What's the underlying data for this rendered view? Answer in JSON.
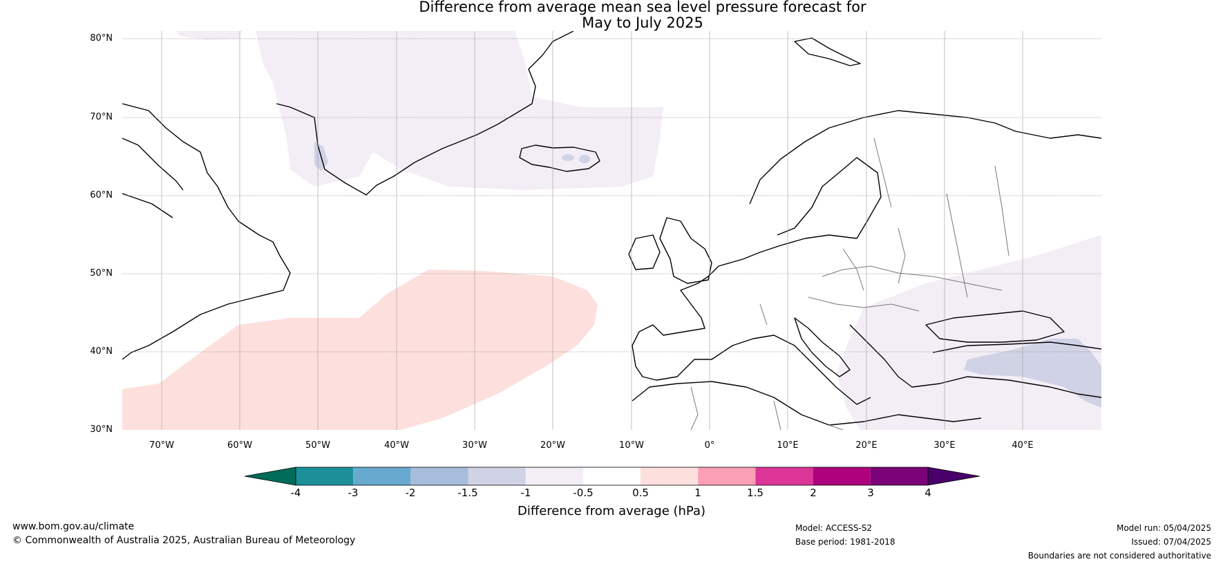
{
  "title_line1": "Difference from average mean sea level pressure forecast for",
  "title_line2": "May to July 2025",
  "map": {
    "lat_ticks": [
      "80°N",
      "70°N",
      "60°N",
      "50°N",
      "40°N",
      "30°N"
    ],
    "lon_ticks": [
      "70°W",
      "60°W",
      "50°W",
      "40°W",
      "30°W",
      "20°W",
      "10°W",
      "0°",
      "10°E",
      "20°E",
      "30°E",
      "40°E"
    ],
    "lat_range": [
      30,
      81
    ],
    "lon_range": [
      -75,
      50
    ],
    "anomaly_regions": [
      {
        "name": "greenland-negative",
        "category": "-1 to -0.5",
        "color": "#f3edf6"
      },
      {
        "name": "greenland-east-negative",
        "category": "-1.5 to -1",
        "color": "#d0d2e6"
      },
      {
        "name": "north-atlantic-positive",
        "category": "0.5 to 1",
        "color": "#fde0dd"
      },
      {
        "name": "eastern-mediterranean-negative",
        "category": "-1 to -0.5",
        "color": "#f3edf6"
      },
      {
        "name": "turkey-negative",
        "category": "-1.5 to -1",
        "color": "#d0d2e6"
      }
    ]
  },
  "colorbar": {
    "label": "Difference from average (hPa)",
    "ticks": [
      "-4",
      "-3",
      "-2",
      "-1.5",
      "-1",
      "-0.5",
      "0.5",
      "1",
      "1.5",
      "2",
      "3",
      "4"
    ],
    "colors": [
      "#016c59",
      "#1c9099",
      "#67a9cf",
      "#a6bddb",
      "#d0d2e6",
      "#f3edf6",
      "#ffffff",
      "#fde0dd",
      "#fa9fb5",
      "#dd3497",
      "#ae017e",
      "#7a0177",
      "#49006a"
    ]
  },
  "footer": {
    "website": "www.bom.gov.au/climate",
    "copyright": "© Commonwealth of Australia 2025, Australian Bureau of Meteorology",
    "model": "Model: ACCESS-S2",
    "base_period": "Base period: 1981-2018",
    "model_run": "Model run: 05/04/2025",
    "issued": "Issued: 07/04/2025",
    "disclaimer": "Boundaries are not considered authoritative"
  }
}
